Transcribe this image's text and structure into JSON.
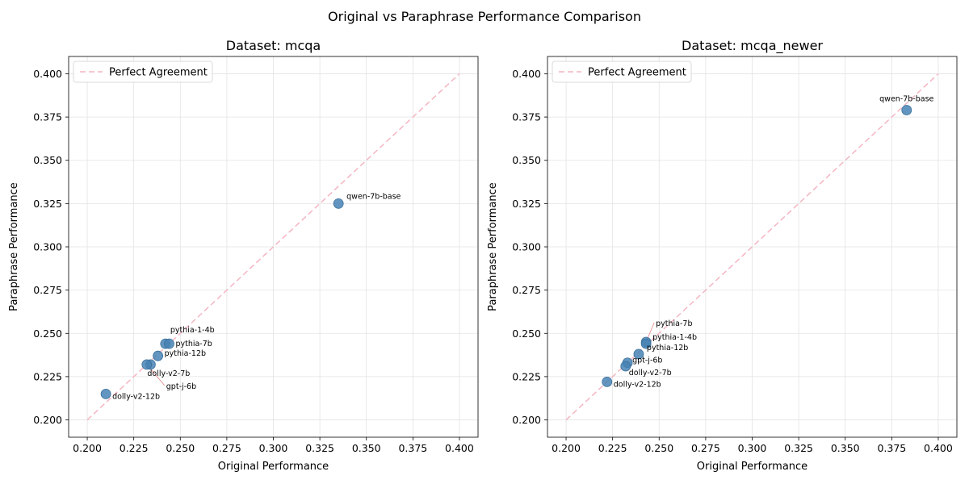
{
  "figure": {
    "title": "Original vs Paraphrase Performance Comparison"
  },
  "chart_data": [
    {
      "type": "scatter",
      "title": "Dataset: mcqa",
      "xlabel": "Original Performance",
      "ylabel": "Paraphrase Performance",
      "xlim": [
        0.19,
        0.41
      ],
      "ylim": [
        0.19,
        0.41
      ],
      "xticks": [
        "0.200",
        "0.225",
        "0.250",
        "0.275",
        "0.300",
        "0.325",
        "0.350",
        "0.375",
        "0.400"
      ],
      "yticks": [
        "0.200",
        "0.225",
        "0.250",
        "0.275",
        "0.300",
        "0.325",
        "0.350",
        "0.375",
        "0.400"
      ],
      "grid": true,
      "legend": {
        "position": "top-left",
        "entries": [
          "Perfect Agreement"
        ]
      },
      "reference_line": {
        "label": "Perfect Agreement",
        "from": [
          0.2,
          0.2
        ],
        "to": [
          0.4,
          0.4
        ],
        "style": "dashed",
        "color": "#f4b6c2"
      },
      "point_color": "#4682b4",
      "points": [
        {
          "label": "qwen-7b-base",
          "x": 0.335,
          "y": 0.325
        },
        {
          "label": "pythia-1-4b",
          "x": 0.242,
          "y": 0.244
        },
        {
          "label": "pythia-7b",
          "x": 0.244,
          "y": 0.244
        },
        {
          "label": "pythia-12b",
          "x": 0.238,
          "y": 0.237
        },
        {
          "label": "dolly-v2-7b",
          "x": 0.234,
          "y": 0.232
        },
        {
          "label": "gpt-j-6b",
          "x": 0.232,
          "y": 0.232
        },
        {
          "label": "dolly-v2-12b",
          "x": 0.21,
          "y": 0.215
        }
      ]
    },
    {
      "type": "scatter",
      "title": "Dataset: mcqa_newer",
      "xlabel": "Original Performance",
      "ylabel": "Paraphrase Performance",
      "xlim": [
        0.19,
        0.41
      ],
      "ylim": [
        0.19,
        0.41
      ],
      "xticks": [
        "0.200",
        "0.225",
        "0.250",
        "0.275",
        "0.300",
        "0.325",
        "0.350",
        "0.375",
        "0.400"
      ],
      "yticks": [
        "0.200",
        "0.225",
        "0.250",
        "0.275",
        "0.300",
        "0.325",
        "0.350",
        "0.375",
        "0.400"
      ],
      "grid": true,
      "legend": {
        "position": "top-left",
        "entries": [
          "Perfect Agreement"
        ]
      },
      "reference_line": {
        "label": "Perfect Agreement",
        "from": [
          0.2,
          0.2
        ],
        "to": [
          0.4,
          0.4
        ],
        "style": "dashed",
        "color": "#f4b6c2"
      },
      "point_color": "#4682b4",
      "points": [
        {
          "label": "qwen-7b-base",
          "x": 0.383,
          "y": 0.379
        },
        {
          "label": "pythia-7b",
          "x": 0.243,
          "y": 0.245
        },
        {
          "label": "pythia-1-4b",
          "x": 0.243,
          "y": 0.244
        },
        {
          "label": "pythia-12b",
          "x": 0.239,
          "y": 0.238
        },
        {
          "label": "gpt-j-6b",
          "x": 0.233,
          "y": 0.233
        },
        {
          "label": "dolly-v2-7b",
          "x": 0.232,
          "y": 0.231
        },
        {
          "label": "dolly-v2-12b",
          "x": 0.222,
          "y": 0.222
        }
      ]
    }
  ]
}
